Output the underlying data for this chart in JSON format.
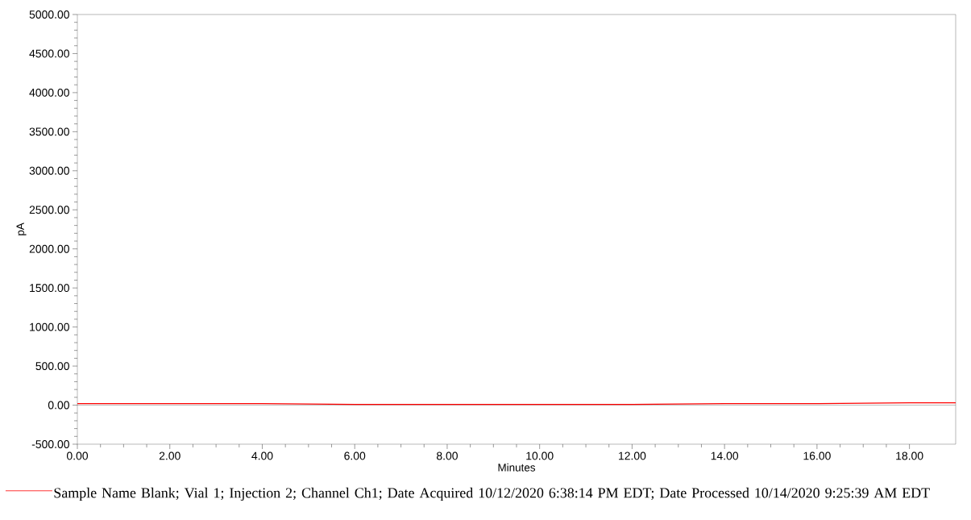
{
  "chart_data": {
    "type": "line",
    "xlabel": "Minutes",
    "ylabel": "pA",
    "xlim": [
      0,
      19
    ],
    "ylim": [
      -500,
      5000
    ],
    "xticks": [
      {
        "value": 0,
        "label": "0.00"
      },
      {
        "value": 2,
        "label": "2.00"
      },
      {
        "value": 4,
        "label": "4.00"
      },
      {
        "value": 6,
        "label": "6.00"
      },
      {
        "value": 8,
        "label": "8.00"
      },
      {
        "value": 10,
        "label": "10.00"
      },
      {
        "value": 12,
        "label": "12.00"
      },
      {
        "value": 14,
        "label": "14.00"
      },
      {
        "value": 16,
        "label": "16.00"
      },
      {
        "value": 18,
        "label": "18.00"
      }
    ],
    "yticks": [
      {
        "value": -500,
        "label": "-500.00"
      },
      {
        "value": 0,
        "label": "0.00"
      },
      {
        "value": 500,
        "label": "500.00"
      },
      {
        "value": 1000,
        "label": "1000.00"
      },
      {
        "value": 1500,
        "label": "1500.00"
      },
      {
        "value": 2000,
        "label": "2000.00"
      },
      {
        "value": 2500,
        "label": "2500.00"
      },
      {
        "value": 3000,
        "label": "3000.00"
      },
      {
        "value": 3500,
        "label": "3500.00"
      },
      {
        "value": 4000,
        "label": "4000.00"
      },
      {
        "value": 4500,
        "label": "4500.00"
      },
      {
        "value": 5000,
        "label": "5000.00"
      }
    ],
    "x": [
      0,
      2,
      4,
      6,
      8,
      10,
      12,
      14,
      16,
      18,
      19
    ],
    "series": [
      {
        "name": "Sample Name Blank; Vial 1; Injection 2; Channel Ch1; Date Acquired 10/12/2020 6:38:14 PM EDT; Date Processed 10/14/2020 9:25:39 AM EDT",
        "color": "#ff0000",
        "values": [
          20,
          20,
          20,
          10,
          10,
          10,
          10,
          20,
          20,
          30,
          30
        ]
      }
    ],
    "ref_lines": [
      {
        "axis": "y",
        "value": 0,
        "color": "#555555"
      }
    ],
    "legend": "bottom",
    "grid": false,
    "marker": "none",
    "line_style": "solid"
  }
}
